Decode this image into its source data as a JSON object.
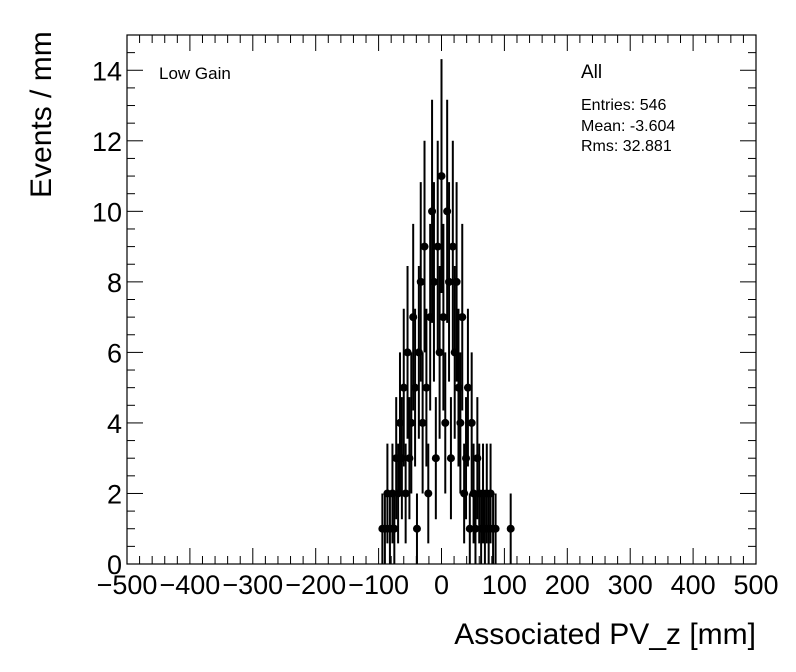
{
  "chart_data": {
    "type": "scatter",
    "style": "histogram-points-with-error-bars",
    "xlabel": "Associated PV_z [mm]",
    "ylabel": "Events / mm",
    "xlim": [
      -500,
      500
    ],
    "ylim": [
      0,
      15
    ],
    "x_ticks": [
      -500,
      -400,
      -300,
      -200,
      -100,
      0,
      100,
      200,
      300,
      400,
      500
    ],
    "x_tick_labels": [
      "−500",
      "−400",
      "−300",
      "−200",
      "−100",
      "0",
      "100",
      "200",
      "300",
      "400",
      "500"
    ],
    "y_ticks": [
      0,
      2,
      4,
      6,
      8,
      10,
      12,
      14
    ],
    "y_tick_labels": [
      "0",
      "2",
      "4",
      "6",
      "8",
      "10",
      "12",
      "14"
    ],
    "grid": false,
    "annotations": {
      "region_label": "Low Gain",
      "stats_title": "All",
      "entries": "Entries: 546",
      "mean": "Mean: -3.604",
      "rms": "Rms: 32.881"
    },
    "x": [
      -94,
      -90,
      -86,
      -82,
      -78,
      -75,
      -72,
      -69,
      -66,
      -63,
      -60,
      -57,
      -54,
      -51,
      -48,
      -45,
      -42,
      -39,
      -36,
      -33,
      -30,
      -27,
      -24,
      -21,
      -18,
      -15,
      -12,
      -9,
      -6,
      -3,
      0,
      3,
      6,
      9,
      12,
      15,
      18,
      21,
      24,
      27,
      30,
      33,
      36,
      39,
      42,
      45,
      48,
      51,
      54,
      57,
      60,
      63,
      66,
      69,
      72,
      75,
      78,
      82,
      86,
      110
    ],
    "y": [
      1,
      1,
      2,
      1,
      2,
      1,
      3,
      2,
      4,
      3,
      5,
      2,
      6,
      3,
      4,
      7,
      5,
      1,
      6,
      8,
      4,
      9,
      5,
      2,
      7,
      10,
      8,
      3,
      9,
      6,
      11,
      7,
      4,
      10,
      8,
      3,
      9,
      6,
      8,
      5,
      4,
      7,
      2,
      3,
      5,
      1,
      4,
      2,
      1,
      3,
      2,
      1,
      2,
      1,
      2,
      1,
      2,
      1,
      1,
      1
    ]
  }
}
